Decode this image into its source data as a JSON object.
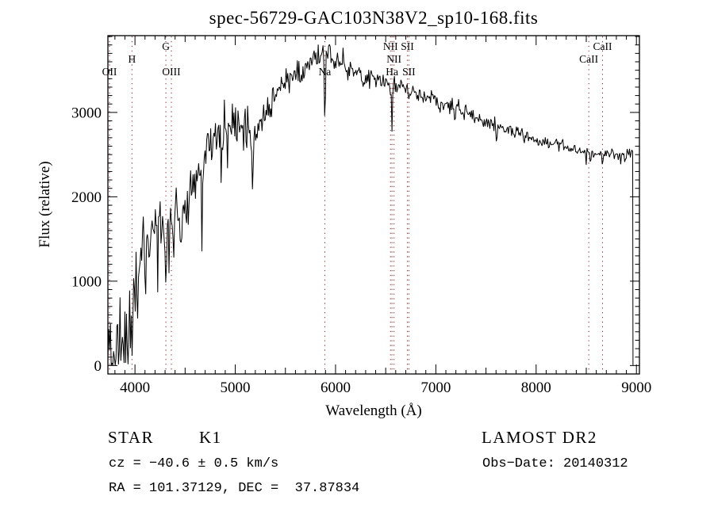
{
  "title": "spec-56729-GAC103N38V2_sp10-168.fits",
  "annotations": {
    "class_label": "STAR",
    "subclass_label": "K1",
    "cz_line": "cz = −40.6 ± 0.5 km/s",
    "radec_line": "RA = 101.37129, DEC =  37.87834",
    "survey": "LAMOST DR2",
    "obsdate_line": "Obs−Date: 20140312"
  },
  "chart_data": {
    "type": "line",
    "title": "spec-56729-GAC103N38V2_sp10-168.fits",
    "xlabel": "Wavelength (Å)",
    "ylabel": "Flux (relative)",
    "xlim": [
      3730,
      9030
    ],
    "ylim": [
      -100,
      3910
    ],
    "x_ticks": [
      4000,
      5000,
      6000,
      7000,
      8000,
      9000
    ],
    "y_ticks": [
      0,
      1000,
      2000,
      3000
    ],
    "x_minor_step": 100,
    "y_minor_step": 100,
    "grid": false,
    "line_color": "#000000",
    "marker_line_color": "#8b2424",
    "seed": 12,
    "sample_step": 8,
    "spectrum_end_wavelength": 8966,
    "spectral_lines": [
      {
        "label": "OII",
        "wavelength": 3727,
        "row": 3
      },
      {
        "label": "H",
        "wavelength": 3970,
        "row": 2
      },
      {
        "label": "G",
        "wavelength": 4308,
        "row": 1
      },
      {
        "label": "OIII",
        "wavelength": 4363,
        "row": 3
      },
      {
        "label": "Na",
        "wavelength": 5893,
        "row": 3
      },
      {
        "label": "NII",
        "wavelength": 6548,
        "row": 1
      },
      {
        "label": "Ha",
        "wavelength": 6563,
        "row": 3
      },
      {
        "label": "NII",
        "wavelength": 6583,
        "row": 2
      },
      {
        "label": "SII",
        "wavelength": 6716,
        "row": 1
      },
      {
        "label": "SII",
        "wavelength": 6731,
        "row": 3
      },
      {
        "label": "CaII",
        "wavelength": 8525,
        "row": 2
      },
      {
        "label": "CaII",
        "wavelength": 8662,
        "row": 1
      }
    ],
    "envelope": [
      [
        3731,
        550
      ],
      [
        3770,
        420
      ],
      [
        3810,
        420
      ],
      [
        3850,
        430
      ],
      [
        3890,
        480
      ],
      [
        3930,
        560
      ],
      [
        3980,
        750
      ],
      [
        4030,
        1100
      ],
      [
        4080,
        1400
      ],
      [
        4130,
        1550
      ],
      [
        4180,
        1640
      ],
      [
        4230,
        1650
      ],
      [
        4280,
        1620
      ],
      [
        4330,
        1620
      ],
      [
        4380,
        1720
      ],
      [
        4430,
        1800
      ],
      [
        4480,
        1880
      ],
      [
        4530,
        1980
      ],
      [
        4580,
        2120
      ],
      [
        4630,
        2300
      ],
      [
        4680,
        2450
      ],
      [
        4730,
        2580
      ],
      [
        4780,
        2670
      ],
      [
        4830,
        2720
      ],
      [
        4880,
        2800
      ],
      [
        4930,
        2870
      ],
      [
        4980,
        2890
      ],
      [
        5030,
        2870
      ],
      [
        5080,
        2840
      ],
      [
        5130,
        2820
      ],
      [
        5180,
        2800
      ],
      [
        5230,
        2860
      ],
      [
        5280,
        2990
      ],
      [
        5330,
        3090
      ],
      [
        5380,
        3160
      ],
      [
        5430,
        3240
      ],
      [
        5480,
        3310
      ],
      [
        5530,
        3380
      ],
      [
        5580,
        3440
      ],
      [
        5630,
        3500
      ],
      [
        5680,
        3550
      ],
      [
        5730,
        3600
      ],
      [
        5780,
        3640
      ],
      [
        5830,
        3670
      ],
      [
        5880,
        3700
      ],
      [
        5930,
        3690
      ],
      [
        5980,
        3660
      ],
      [
        6030,
        3620
      ],
      [
        6080,
        3580
      ],
      [
        6130,
        3540
      ],
      [
        6180,
        3490
      ],
      [
        6230,
        3460
      ],
      [
        6280,
        3440
      ],
      [
        6330,
        3420
      ],
      [
        6380,
        3400
      ],
      [
        6430,
        3380
      ],
      [
        6480,
        3360
      ],
      [
        6530,
        3340
      ],
      [
        6580,
        3320
      ],
      [
        6630,
        3310
      ],
      [
        6680,
        3290
      ],
      [
        6730,
        3270
      ],
      [
        6780,
        3250
      ],
      [
        6830,
        3230
      ],
      [
        6880,
        3210
      ],
      [
        6930,
        3190
      ],
      [
        6980,
        3170
      ],
      [
        7030,
        3140
      ],
      [
        7080,
        3110
      ],
      [
        7130,
        3090
      ],
      [
        7180,
        3060
      ],
      [
        7230,
        3030
      ],
      [
        7280,
        3010
      ],
      [
        7330,
        2980
      ],
      [
        7380,
        2950
      ],
      [
        7430,
        2930
      ],
      [
        7480,
        2900
      ],
      [
        7530,
        2880
      ],
      [
        7580,
        2850
      ],
      [
        7630,
        2830
      ],
      [
        7680,
        2810
      ],
      [
        7730,
        2790
      ],
      [
        7780,
        2770
      ],
      [
        7830,
        2750
      ],
      [
        7880,
        2730
      ],
      [
        7930,
        2710
      ],
      [
        7980,
        2690
      ],
      [
        8030,
        2670
      ],
      [
        8080,
        2660
      ],
      [
        8130,
        2640
      ],
      [
        8180,
        2630
      ],
      [
        8230,
        2610
      ],
      [
        8280,
        2600
      ],
      [
        8330,
        2580
      ],
      [
        8380,
        2570
      ],
      [
        8430,
        2560
      ],
      [
        8480,
        2550
      ],
      [
        8530,
        2530
      ],
      [
        8580,
        2540
      ],
      [
        8630,
        2520
      ],
      [
        8680,
        2510
      ],
      [
        8730,
        2520
      ],
      [
        8780,
        2500
      ],
      [
        8830,
        2490
      ],
      [
        8880,
        2500
      ],
      [
        8930,
        2520
      ],
      [
        8966,
        2560
      ]
    ],
    "noise_sigma": [
      [
        3731,
        320
      ],
      [
        3800,
        300
      ],
      [
        3870,
        280
      ],
      [
        3940,
        260
      ],
      [
        4000,
        200
      ],
      [
        4100,
        170
      ],
      [
        4250,
        150
      ],
      [
        4400,
        140
      ],
      [
        4600,
        130
      ],
      [
        4800,
        120
      ],
      [
        5000,
        115
      ],
      [
        5200,
        105
      ],
      [
        5400,
        95
      ],
      [
        5600,
        85
      ],
      [
        5800,
        80
      ],
      [
        6000,
        65
      ],
      [
        6200,
        60
      ],
      [
        6500,
        55
      ],
      [
        6800,
        50
      ],
      [
        7100,
        45
      ],
      [
        7400,
        42
      ],
      [
        7700,
        40
      ],
      [
        8000,
        38
      ],
      [
        8300,
        38
      ],
      [
        8600,
        42
      ],
      [
        8900,
        45
      ],
      [
        8966,
        45
      ]
    ],
    "absorption_features": [
      {
        "center": 3745,
        "width": 12,
        "depth": 0.9
      },
      {
        "center": 3772,
        "width": 10,
        "depth": 0.95
      },
      {
        "center": 3798,
        "width": 10,
        "depth": 0.9
      },
      {
        "center": 3835,
        "width": 12,
        "depth": 0.95
      },
      {
        "center": 3860,
        "width": 8,
        "depth": 0.7
      },
      {
        "center": 3889,
        "width": 10,
        "depth": 0.85
      },
      {
        "center": 3933,
        "width": 12,
        "depth": 0.9
      },
      {
        "center": 3970,
        "width": 12,
        "depth": 0.85
      },
      {
        "center": 4026,
        "width": 8,
        "depth": 0.4
      },
      {
        "center": 4101,
        "width": 10,
        "depth": 0.4
      },
      {
        "center": 4144,
        "width": 8,
        "depth": 0.3
      },
      {
        "center": 4227,
        "width": 8,
        "depth": 0.35
      },
      {
        "center": 4310,
        "width": 16,
        "depth": 0.42
      },
      {
        "center": 4340,
        "width": 8,
        "depth": 0.3
      },
      {
        "center": 4384,
        "width": 8,
        "depth": 0.3
      },
      {
        "center": 4455,
        "width": 8,
        "depth": 0.25
      },
      {
        "center": 4530,
        "width": 8,
        "depth": 0.2
      },
      {
        "center": 4668,
        "width": 10,
        "depth": 0.45
      },
      {
        "center": 4861,
        "width": 9,
        "depth": 0.25
      },
      {
        "center": 4920,
        "width": 8,
        "depth": 0.15
      },
      {
        "center": 5015,
        "width": 8,
        "depth": 0.12
      },
      {
        "center": 5172,
        "width": 20,
        "depth": 0.26
      },
      {
        "center": 5270,
        "width": 8,
        "depth": 0.1
      },
      {
        "center": 5893,
        "width": 11,
        "depth": 0.22
      },
      {
        "center": 6122,
        "width": 8,
        "depth": 0.08
      },
      {
        "center": 6563,
        "width": 9,
        "depth": 0.17
      },
      {
        "center": 6870,
        "width": 12,
        "depth": 0.06
      },
      {
        "center": 7190,
        "width": 14,
        "depth": 0.05
      },
      {
        "center": 7605,
        "width": 14,
        "depth": 0.07
      },
      {
        "center": 8498,
        "width": 8,
        "depth": 0.06
      },
      {
        "center": 8542,
        "width": 9,
        "depth": 0.09
      },
      {
        "center": 8662,
        "width": 9,
        "depth": 0.09
      }
    ]
  }
}
